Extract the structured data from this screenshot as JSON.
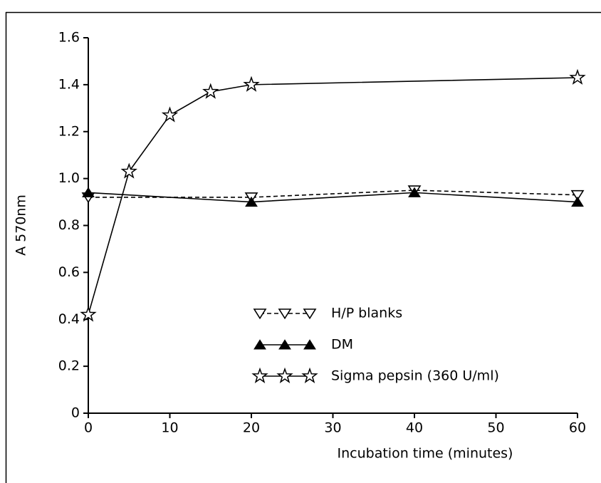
{
  "chart_data": {
    "type": "line",
    "x_label": "Incubation time (minutes)",
    "y_label": "A 570nm",
    "series": [
      {
        "name": "H/P blanks",
        "color": "#000000",
        "dash": true,
        "marker": "triangle-down-open",
        "x": [
          0,
          20,
          40,
          60
        ],
        "values": [
          0.92,
          0.92,
          0.95,
          0.93
        ]
      },
      {
        "name": "DM",
        "color": "#000000",
        "dash": false,
        "marker": "triangle-filled",
        "x": [
          0,
          20,
          40,
          60
        ],
        "values": [
          0.94,
          0.9,
          0.94,
          0.9
        ]
      },
      {
        "name": "Sigma pepsin (360 U/ml)",
        "color": "#000000",
        "dash": false,
        "marker": "star-open",
        "x": [
          0,
          5,
          10,
          15,
          20,
          60
        ],
        "values": [
          0.42,
          1.03,
          1.27,
          1.37,
          1.4,
          1.43
        ]
      }
    ],
    "xlim": [
      0,
      60
    ],
    "xticks": [
      0,
      10,
      20,
      30,
      40,
      50,
      60
    ],
    "ylim": [
      0,
      1.6
    ],
    "yticks": [
      0,
      0.2,
      0.4,
      0.6,
      0.8,
      {
        "value": 1,
        "label": "1.0"
      },
      1.2,
      1.4,
      1.6
    ],
    "grid": false,
    "legend": "lower center"
  }
}
